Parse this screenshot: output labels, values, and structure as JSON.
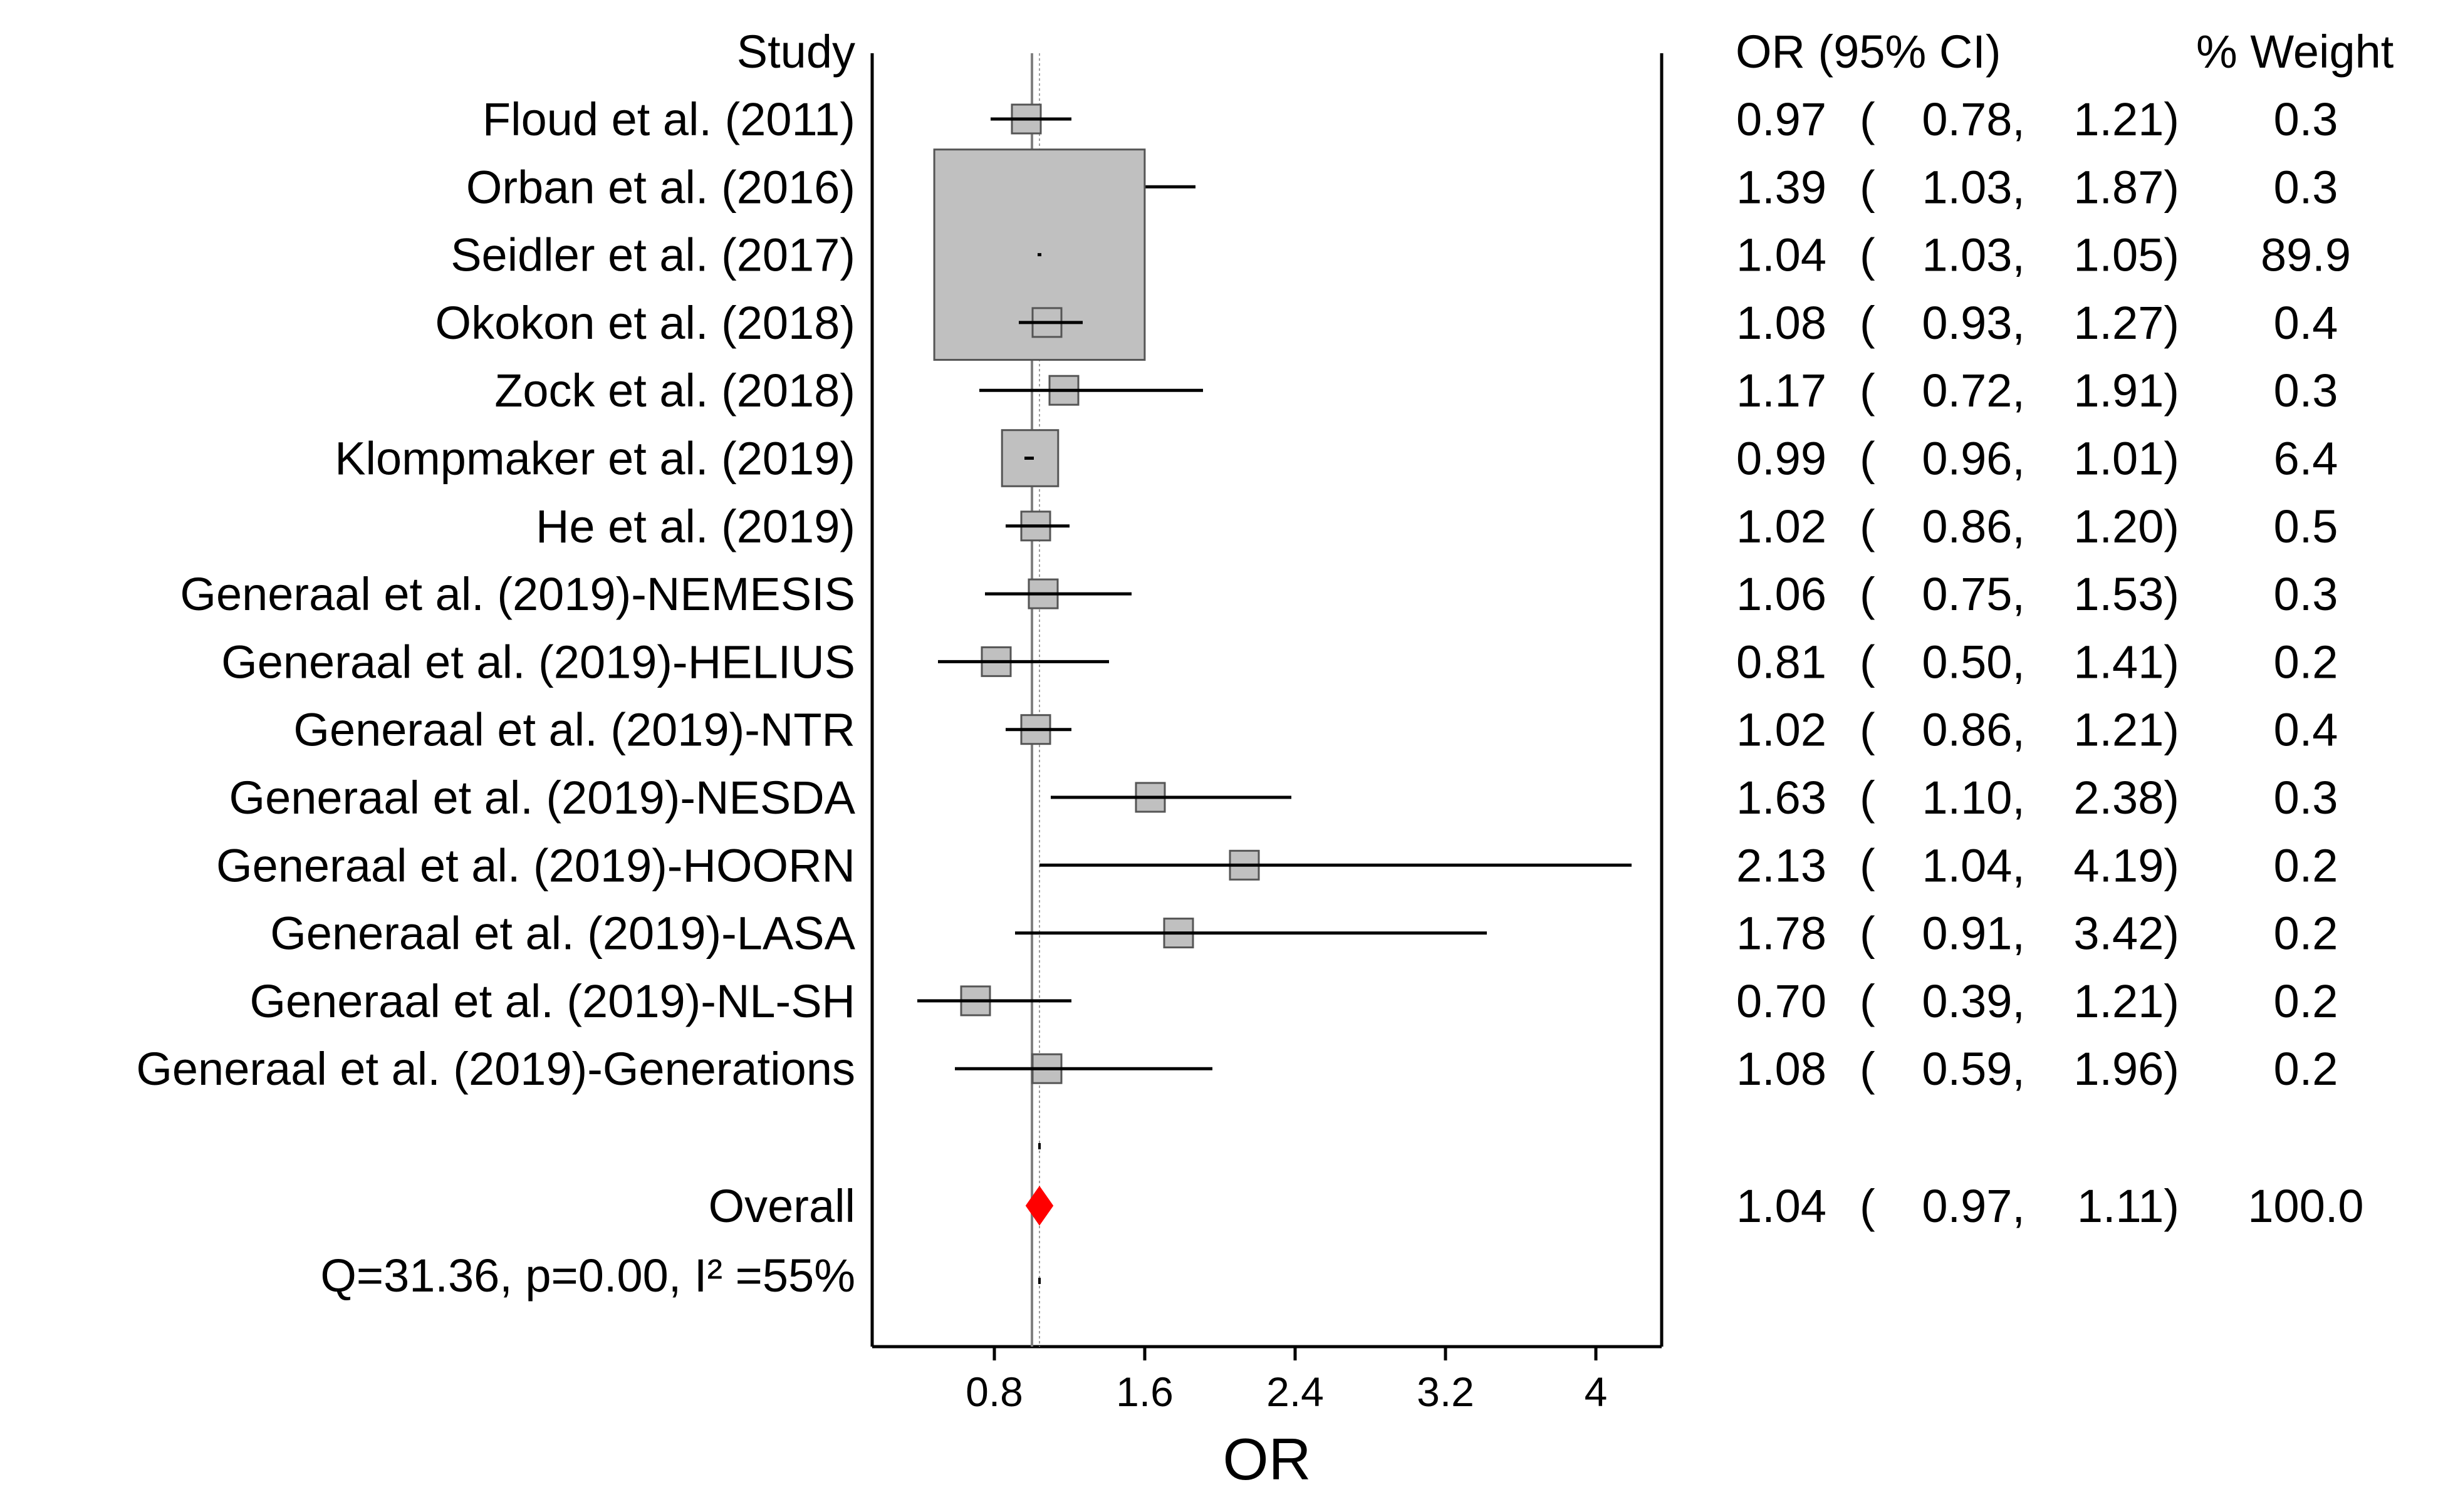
{
  "chart_data": {
    "type": "forest",
    "xlabel": "OR",
    "xlim": [
      0.15,
      4.35
    ],
    "xticks": [
      0.8,
      1.6,
      2.4,
      3.2,
      4
    ],
    "xtick_labels": [
      "0.8",
      "1.6",
      "2.4",
      "3.2",
      "4"
    ],
    "null_line": 1.0,
    "pooled_line": 1.04,
    "headers": {
      "study": "Study",
      "ci": "OR (95% CI)",
      "weight": "% Weight"
    },
    "studies": [
      {
        "label": "Floud et al. (2011)",
        "or": 0.97,
        "lo": 0.78,
        "hi": 1.21,
        "or_text": "0.97",
        "lo_text": "0.78,",
        "hi_text": "1.21)",
        "weight": 0.3,
        "weight_text": "0.3"
      },
      {
        "label": "Orban et al. (2016)",
        "or": 1.39,
        "lo": 1.03,
        "hi": 1.87,
        "or_text": "1.39",
        "lo_text": "1.03,",
        "hi_text": "1.87)",
        "weight": 0.3,
        "weight_text": "0.3"
      },
      {
        "label": "Seidler et al. (2017)",
        "or": 1.04,
        "lo": 1.03,
        "hi": 1.05,
        "or_text": "1.04",
        "lo_text": "1.03,",
        "hi_text": "1.05)",
        "weight": 89.9,
        "weight_text": "89.9"
      },
      {
        "label": "Okokon et al. (2018)",
        "or": 1.08,
        "lo": 0.93,
        "hi": 1.27,
        "or_text": "1.08",
        "lo_text": "0.93,",
        "hi_text": "1.27)",
        "weight": 0.4,
        "weight_text": "0.4"
      },
      {
        "label": "Zock et al. (2018)",
        "or": 1.17,
        "lo": 0.72,
        "hi": 1.91,
        "or_text": "1.17",
        "lo_text": "0.72,",
        "hi_text": "1.91)",
        "weight": 0.3,
        "weight_text": "0.3"
      },
      {
        "label": "Klompmaker et al. (2019)",
        "or": 0.99,
        "lo": 0.96,
        "hi": 1.01,
        "or_text": "0.99",
        "lo_text": "0.96,",
        "hi_text": "1.01)",
        "weight": 6.4,
        "weight_text": "6.4"
      },
      {
        "label": "He et al. (2019)",
        "or": 1.02,
        "lo": 0.86,
        "hi": 1.2,
        "or_text": "1.02",
        "lo_text": "0.86,",
        "hi_text": "1.20)",
        "weight": 0.5,
        "weight_text": "0.5"
      },
      {
        "label": "Generaal et al. (2019)-NEMESIS",
        "or": 1.06,
        "lo": 0.75,
        "hi": 1.53,
        "or_text": "1.06",
        "lo_text": "0.75,",
        "hi_text": "1.53)",
        "weight": 0.3,
        "weight_text": "0.3"
      },
      {
        "label": "Generaal et al. (2019)-HELIUS",
        "or": 0.81,
        "lo": 0.5,
        "hi": 1.41,
        "or_text": "0.81",
        "lo_text": "0.50,",
        "hi_text": "1.41)",
        "weight": 0.2,
        "weight_text": "0.2"
      },
      {
        "label": "Generaal et al. (2019)-NTR",
        "or": 1.02,
        "lo": 0.86,
        "hi": 1.21,
        "or_text": "1.02",
        "lo_text": "0.86,",
        "hi_text": "1.21)",
        "weight": 0.4,
        "weight_text": "0.4"
      },
      {
        "label": "Generaal et al. (2019)-NESDA",
        "or": 1.63,
        "lo": 1.1,
        "hi": 2.38,
        "or_text": "1.63",
        "lo_text": "1.10,",
        "hi_text": "2.38)",
        "weight": 0.3,
        "weight_text": "0.3"
      },
      {
        "label": "Generaal et al. (2019)-HOORN",
        "or": 2.13,
        "lo": 1.04,
        "hi": 4.19,
        "or_text": "2.13",
        "lo_text": "1.04,",
        "hi_text": "4.19)",
        "weight": 0.2,
        "weight_text": "0.2"
      },
      {
        "label": "Generaal et al. (2019)-LASA",
        "or": 1.78,
        "lo": 0.91,
        "hi": 3.42,
        "or_text": "1.78",
        "lo_text": "0.91,",
        "hi_text": "3.42)",
        "weight": 0.2,
        "weight_text": "0.2"
      },
      {
        "label": "Generaal et al. (2019)-NL-SH",
        "or": 0.7,
        "lo": 0.39,
        "hi": 1.21,
        "or_text": "0.70",
        "lo_text": "0.39,",
        "hi_text": "1.21)",
        "weight": 0.2,
        "weight_text": "0.2"
      },
      {
        "label": "Generaal et al. (2019)-Generations",
        "or": 1.08,
        "lo": 0.59,
        "hi": 1.96,
        "or_text": "1.08",
        "lo_text": "0.59,",
        "hi_text": "1.96)",
        "weight": 0.2,
        "weight_text": "0.2"
      }
    ],
    "overall": {
      "label": "Overall",
      "or": 1.04,
      "lo": 0.97,
      "hi": 1.11,
      "or_text": "1.04",
      "lo_text": "0.97,",
      "hi_text": "1.11)",
      "weight": 100.0,
      "weight_text": "100.0"
    },
    "heterogeneity": "Q=31.36, p=0.00, I² =55%",
    "colors": {
      "box_fill": "#c0c0c0",
      "box_stroke": "#555555",
      "diamond": "#ff0000",
      "ref_line": "#808080",
      "axis": "#000000"
    }
  }
}
